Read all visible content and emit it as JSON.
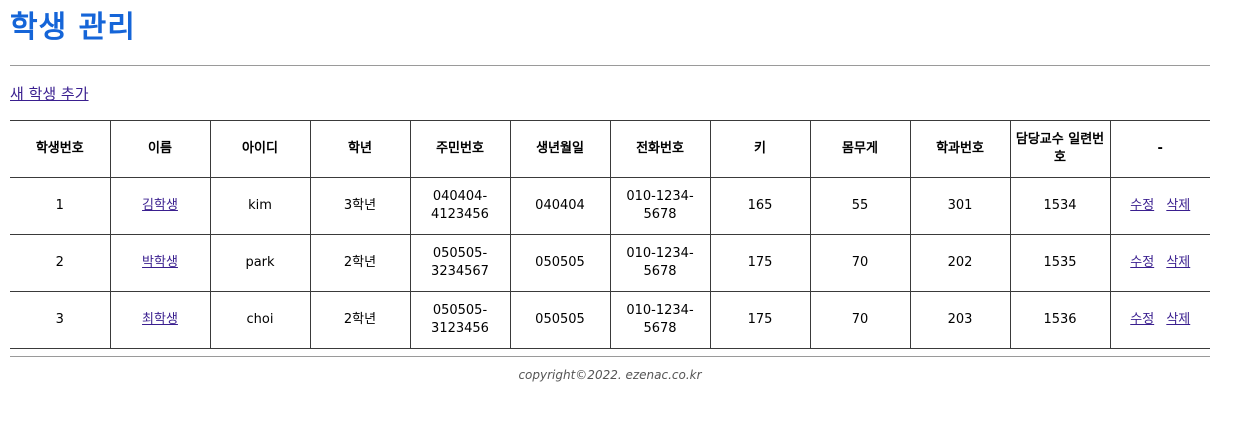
{
  "page_title": "학생 관리",
  "add_link": "새 학생 추가",
  "columns": [
    "학생번호",
    "이름",
    "아이디",
    "학년",
    "주민번호",
    "생년월일",
    "전화번호",
    "키",
    "몸무게",
    "학과번호",
    "담당교수 일련번호",
    "-"
  ],
  "rows": [
    {
      "no": "1",
      "name": "김학생",
      "id": "kim",
      "grade": "3학년",
      "rrn": "040404-4123456",
      "birth": "040404",
      "phone": "010-1234-5678",
      "height": "165",
      "weight": "55",
      "dept": "301",
      "prof": "1534"
    },
    {
      "no": "2",
      "name": "박학생",
      "id": "park",
      "grade": "2학년",
      "rrn": "050505-3234567",
      "birth": "050505",
      "phone": "010-1234-5678",
      "height": "175",
      "weight": "70",
      "dept": "202",
      "prof": "1535"
    },
    {
      "no": "3",
      "name": "최학생",
      "id": "choi",
      "grade": "2학년",
      "rrn": "050505-3123456",
      "birth": "050505",
      "phone": "010-1234-5678",
      "height": "175",
      "weight": "70",
      "dept": "203",
      "prof": "1536"
    }
  ],
  "actions": {
    "edit": "수정",
    "delete": "삭제"
  },
  "footer": "copyright©2022. ezenac.co.kr",
  "colors": {
    "title": "#1565d8",
    "link": "#3a1f8f"
  }
}
